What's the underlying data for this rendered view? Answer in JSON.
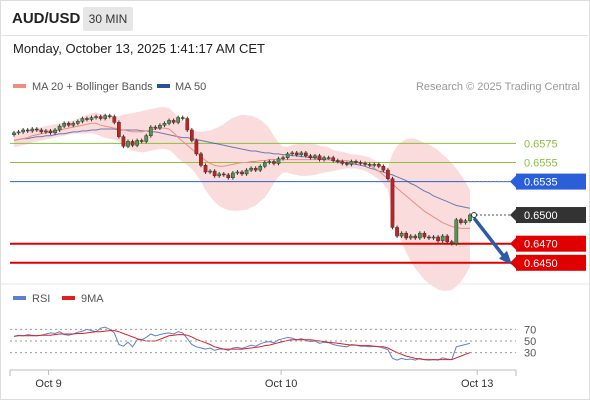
{
  "header": {
    "symbol": "AUD/USD",
    "timeframe": "30 MIN",
    "datetime": "Monday, October 13, 2025 1:41:17 AM CET"
  },
  "legend": {
    "ma20_label": "MA 20 + Bollinger Bands",
    "ma50_label": "MA 50",
    "credit": "Research © 2025 Trading Central",
    "ma20_color": "#f28b82",
    "ma50_color": "#2c4f9e",
    "band_color": "#f9d0d0"
  },
  "rsi_legend": {
    "rsi_label": "RSI",
    "ma_label": "9MA",
    "rsi_color": "#5b7fd4",
    "ma_color": "#e02020"
  },
  "chart_data": {
    "type": "candlestick",
    "x_ticks": [
      "Oct 9",
      "Oct 10",
      "Oct 13"
    ],
    "y_range": [
      0.6432,
      0.6612
    ],
    "levels": [
      {
        "label": "0.6575",
        "value": 0.6575,
        "kind": "resistance",
        "color": "#8bbf3c"
      },
      {
        "label": "0.6555",
        "value": 0.6555,
        "kind": "resistance",
        "color": "#8bbf3c"
      },
      {
        "label": "0.6535",
        "value": 0.6535,
        "kind": "pivot",
        "color": "#2b5fd9"
      },
      {
        "label": "0.6500",
        "value": 0.65,
        "kind": "last",
        "color": "#333333"
      },
      {
        "label": "0.6470",
        "value": 0.647,
        "kind": "target",
        "color": "#e00000"
      },
      {
        "label": "0.6450",
        "value": 0.645,
        "kind": "target",
        "color": "#e00000"
      }
    ],
    "close": [
      0.6586,
      0.6587,
      0.6589,
      0.6588,
      0.659,
      0.6589,
      0.6587,
      0.6588,
      0.6586,
      0.6589,
      0.6593,
      0.6596,
      0.6594,
      0.6596,
      0.6598,
      0.6601,
      0.66,
      0.6602,
      0.6603,
      0.6601,
      0.6604,
      0.6603,
      0.6597,
      0.6582,
      0.6572,
      0.6577,
      0.6573,
      0.6578,
      0.6577,
      0.6583,
      0.6592,
      0.6591,
      0.6594,
      0.6596,
      0.6599,
      0.6597,
      0.6602,
      0.6601,
      0.6589,
      0.6578,
      0.6564,
      0.6552,
      0.6545,
      0.6546,
      0.6541,
      0.6543,
      0.6542,
      0.6539,
      0.6544,
      0.6545,
      0.6543,
      0.6547,
      0.6549,
      0.6547,
      0.6551,
      0.6555,
      0.6556,
      0.6554,
      0.6559,
      0.656,
      0.6564,
      0.6565,
      0.6563,
      0.6565,
      0.6562,
      0.656,
      0.6562,
      0.6558,
      0.656,
      0.656,
      0.6557,
      0.6556,
      0.6554,
      0.6553,
      0.6556,
      0.6555,
      0.6554,
      0.6553,
      0.6552,
      0.6553,
      0.6551,
      0.6547,
      0.6538,
      0.6487,
      0.6478,
      0.6481,
      0.6476,
      0.6478,
      0.6476,
      0.6481,
      0.6477,
      0.6476,
      0.6477,
      0.6473,
      0.6478,
      0.6472,
      0.647,
      0.6495,
      0.6492,
      0.6494,
      0.65
    ],
    "ma20": [
      0.6578,
      0.6579,
      0.658,
      0.6581,
      0.6583,
      0.6584,
      0.6585,
      0.6586,
      0.6587,
      0.6588,
      0.6589,
      0.659,
      0.6591,
      0.6592,
      0.6593,
      0.6594,
      0.6595,
      0.6596,
      0.6596,
      0.6594,
      0.6593,
      0.6592,
      0.6591,
      0.659,
      0.6589,
      0.6588,
      0.6587,
      0.6587,
      0.6587,
      0.6588,
      0.6589,
      0.659,
      0.6591,
      0.6591,
      0.659,
      0.6586,
      0.6581,
      0.6577,
      0.6573,
      0.6569,
      0.6565,
      0.6561,
      0.6557,
      0.6554,
      0.6552,
      0.6551,
      0.6551,
      0.6552,
      0.6553,
      0.6554,
      0.6555,
      0.6555,
      0.6556,
      0.6556,
      0.6557,
      0.6557,
      0.6558,
      0.6558,
      0.6558,
      0.6558,
      0.6558,
      0.6558,
      0.6558,
      0.6558,
      0.6558,
      0.6558,
      0.6558,
      0.6558,
      0.6558,
      0.6558,
      0.6557,
      0.6557,
      0.6557,
      0.6557,
      0.6556,
      0.6556,
      0.6555,
      0.6554,
      0.6552,
      0.6549,
      0.6546,
      0.6542,
      0.6538,
      0.6533,
      0.6528,
      0.6524,
      0.652,
      0.6516,
      0.6512,
      0.6508,
      0.6504,
      0.6501,
      0.6498,
      0.6495,
      0.6492,
      0.649,
      0.6488,
      0.6487,
      0.6486,
      0.6486,
      0.6486
    ],
    "ma50": [
      0.6578,
      0.6579,
      0.658,
      0.658,
      0.6581,
      0.6582,
      0.6582,
      0.6583,
      0.6583,
      0.6584,
      0.6585,
      0.6585,
      0.6586,
      0.6587,
      0.6587,
      0.6588,
      0.6588,
      0.6589,
      0.6589,
      0.659,
      0.659,
      0.659,
      0.659,
      0.6589,
      0.6589,
      0.6589,
      0.6589,
      0.6589,
      0.6588,
      0.6588,
      0.6587,
      0.6587,
      0.6586,
      0.6585,
      0.6584,
      0.6583,
      0.6582,
      0.6581,
      0.6581,
      0.658,
      0.6579,
      0.6578,
      0.6577,
      0.6576,
      0.6575,
      0.6574,
      0.6573,
      0.6572,
      0.6571,
      0.657,
      0.6569,
      0.6568,
      0.6567,
      0.6567,
      0.6566,
      0.6565,
      0.6565,
      0.6564,
      0.6564,
      0.6563,
      0.6563,
      0.6562,
      0.6562,
      0.6561,
      0.6561,
      0.656,
      0.656,
      0.6559,
      0.6558,
      0.6558,
      0.6557,
      0.6556,
      0.6555,
      0.6555,
      0.6554,
      0.6553,
      0.6552,
      0.6551,
      0.6549,
      0.6548,
      0.6546,
      0.6545,
      0.6543,
      0.6542,
      0.654,
      0.6538,
      0.6536,
      0.6533,
      0.6531,
      0.6528,
      0.6525,
      0.6523,
      0.652,
      0.6518,
      0.6516,
      0.6514,
      0.6512,
      0.651,
      0.6509,
      0.6508,
      0.6507
    ],
    "rsi": {
      "range": [
        0,
        100
      ],
      "ticks": [
        "70",
        "50",
        "30"
      ],
      "rsi": [
        58,
        60,
        59,
        61,
        60,
        59,
        60,
        62,
        64,
        63,
        66,
        61,
        60,
        62,
        65,
        67,
        70,
        68,
        66,
        72,
        74,
        70,
        64,
        44,
        41,
        48,
        40,
        52,
        52,
        56,
        62,
        59,
        61,
        63,
        64,
        62,
        66,
        64,
        54,
        44,
        40,
        38,
        36,
        38,
        34,
        36,
        36,
        34,
        38,
        39,
        37,
        40,
        43,
        41,
        45,
        48,
        49,
        47,
        52,
        54,
        56,
        55,
        52,
        54,
        51,
        49,
        50,
        46,
        48,
        47,
        44,
        42,
        41,
        40,
        44,
        43,
        41,
        41,
        40,
        41,
        40,
        38,
        35,
        20,
        17,
        20,
        18,
        19,
        17,
        20,
        18,
        17,
        18,
        17,
        21,
        19,
        18,
        40,
        42,
        44,
        46
      ],
      "ma9": [
        58,
        59,
        59,
        59,
        59,
        59,
        60,
        60,
        60,
        61,
        62,
        62,
        62,
        62,
        63,
        63,
        64,
        65,
        66,
        66,
        67,
        68,
        68,
        66,
        63,
        60,
        57,
        54,
        52,
        50,
        50,
        50,
        53,
        56,
        59,
        60,
        61,
        61,
        60,
        57,
        53,
        50,
        47,
        44,
        40,
        38,
        36,
        36,
        36,
        36,
        36,
        37,
        38,
        39,
        40,
        42,
        43,
        45,
        47,
        49,
        51,
        52,
        52,
        52,
        52,
        52,
        51,
        50,
        49,
        48,
        47,
        46,
        45,
        44,
        43,
        43,
        42,
        42,
        42,
        41,
        40,
        40,
        38,
        34,
        30,
        27,
        24,
        22,
        20,
        19,
        18,
        18,
        18,
        18,
        18,
        18,
        18,
        21,
        24,
        27,
        30
      ]
    }
  }
}
